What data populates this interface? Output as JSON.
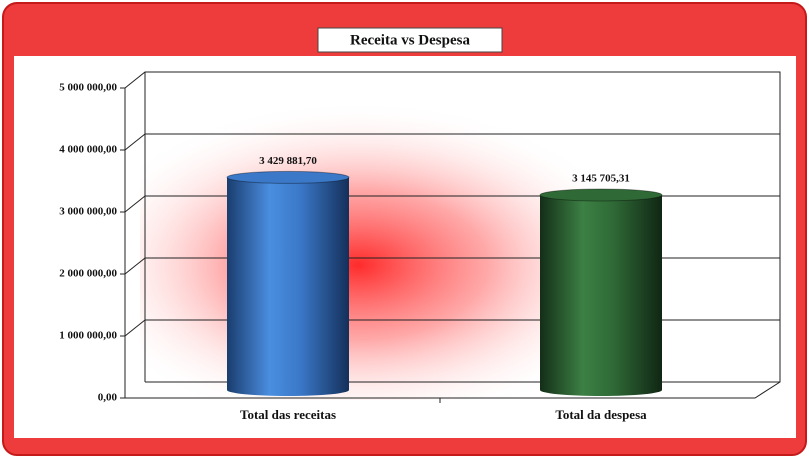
{
  "chart_data": {
    "type": "bar",
    "title": "Receita vs Despesa",
    "categories": [
      "Total das receitas",
      "Total da despesa"
    ],
    "values": [
      3429881.7,
      3145705.31
    ],
    "value_labels": [
      "3 429 881,70",
      "3 145 705,31"
    ],
    "colors": [
      "#3b78c8",
      "#2f6a36"
    ],
    "ylim": [
      0,
      5000000
    ],
    "yticks": [
      {
        "value": 0,
        "label": "0,00"
      },
      {
        "value": 1000000,
        "label": "1 000 000,00"
      },
      {
        "value": 2000000,
        "label": "2 000 000,00"
      },
      {
        "value": 3000000,
        "label": "3 000 000,00"
      },
      {
        "value": 4000000,
        "label": "4 000 000,00"
      },
      {
        "value": 5000000,
        "label": "5 000 000,00"
      }
    ],
    "grid": true
  }
}
